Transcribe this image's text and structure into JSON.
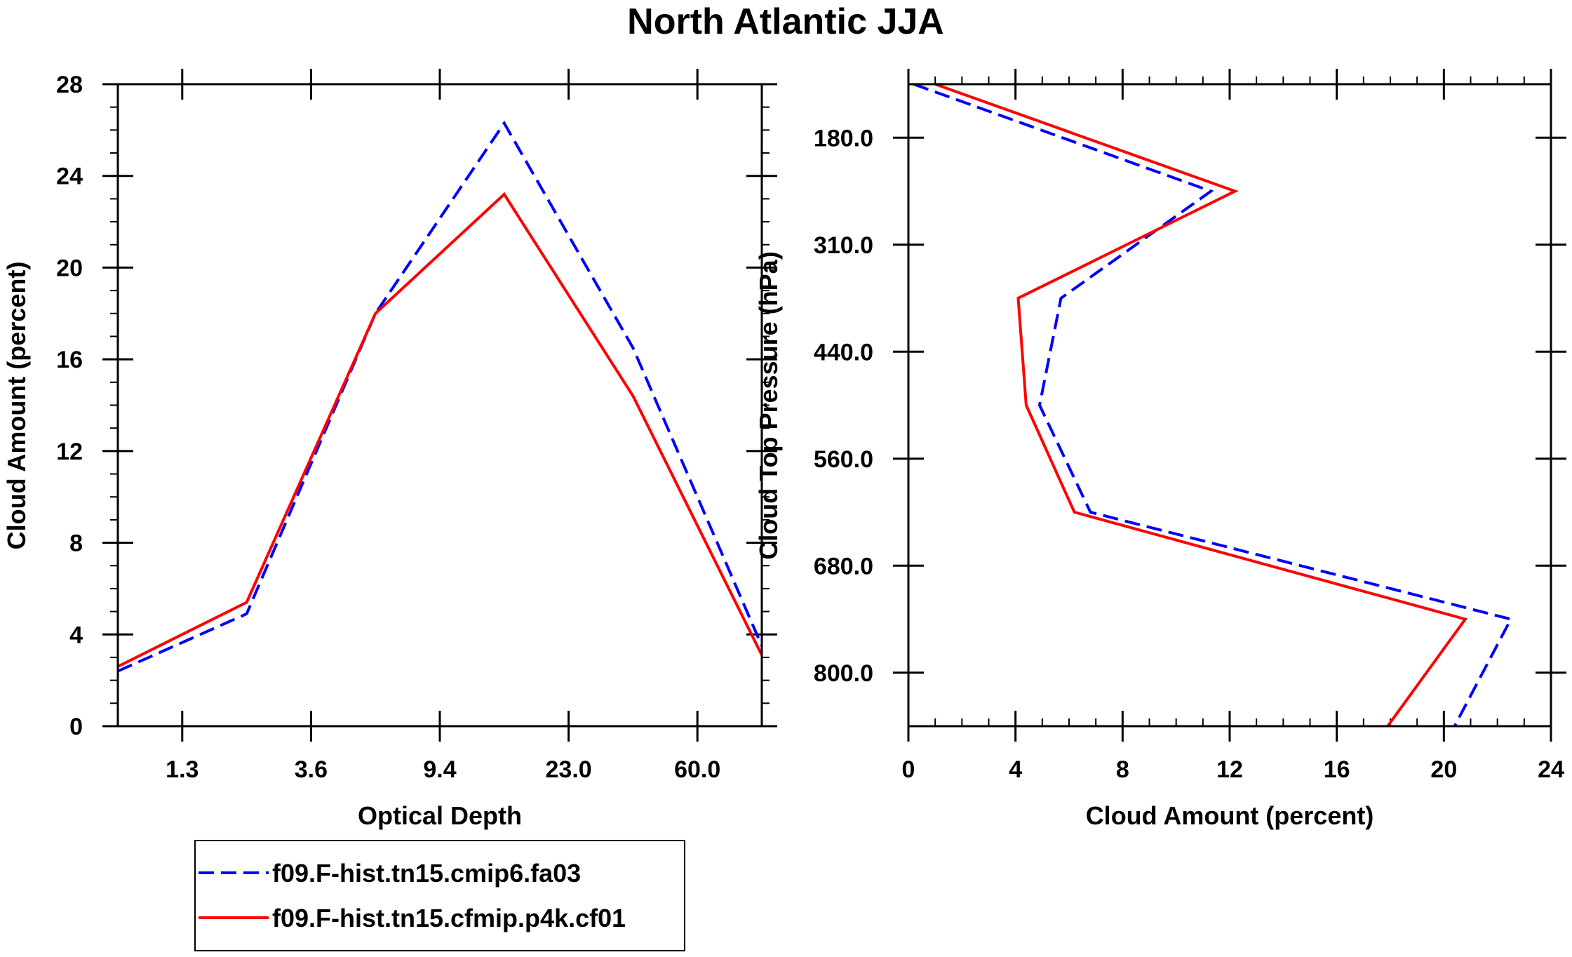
{
  "title": "North Atlantic JJA",
  "legend": {
    "entries": [
      {
        "name": "f09.F-hist.tn15.cmip6.fa03",
        "color": "#0000ff",
        "dash": "dashed"
      },
      {
        "name": "f09.F-hist.tn15.cfmip.p4k.cf01",
        "color": "#ff0000",
        "dash": "solid"
      }
    ]
  },
  "chart_data": [
    {
      "type": "line",
      "xlabel": "Optical Depth",
      "ylabel": "Cloud Amount (percent)",
      "x_ticks": [
        "1.3",
        "3.6",
        "9.4",
        "23.0",
        "60.0"
      ],
      "x_index_range": [
        0,
        5
      ],
      "ylim": [
        0,
        28
      ],
      "y_ticks": [
        0,
        4,
        8,
        12,
        16,
        20,
        24,
        28
      ],
      "x": [
        0,
        1,
        2,
        3,
        4,
        5
      ],
      "series": [
        {
          "name": "f09.F-hist.tn15.cmip6.fa03",
          "values": [
            2.4,
            4.9,
            18.0,
            26.3,
            16.5,
            3.5
          ]
        },
        {
          "name": "f09.F-hist.tn15.cfmip.p4k.cf01",
          "values": [
            2.6,
            5.4,
            18.0,
            23.2,
            14.4,
            3.1
          ]
        }
      ]
    },
    {
      "type": "line",
      "orientation": "vertical-profile",
      "xlabel": "Cloud Amount (percent)",
      "ylabel": "Cloud Top Pressure (hPa)",
      "xlim": [
        0,
        24
      ],
      "x_ticks": [
        0,
        4,
        8,
        12,
        16,
        20,
        24
      ],
      "y_ticks": [
        "180.0",
        "310.0",
        "440.0",
        "560.0",
        "680.0",
        "800.0"
      ],
      "y_index_range": [
        0,
        6
      ],
      "y": [
        0,
        1,
        2,
        3,
        4,
        5,
        6
      ],
      "series": [
        {
          "name": "f09.F-hist.tn15.cmip6.fa03",
          "values": [
            0.2,
            11.3,
            5.7,
            4.9,
            6.8,
            22.5,
            20.4
          ]
        },
        {
          "name": "f09.F-hist.tn15.cfmip.p4k.cf01",
          "values": [
            1.0,
            12.2,
            4.1,
            4.4,
            6.2,
            20.8,
            17.9
          ]
        }
      ]
    }
  ]
}
